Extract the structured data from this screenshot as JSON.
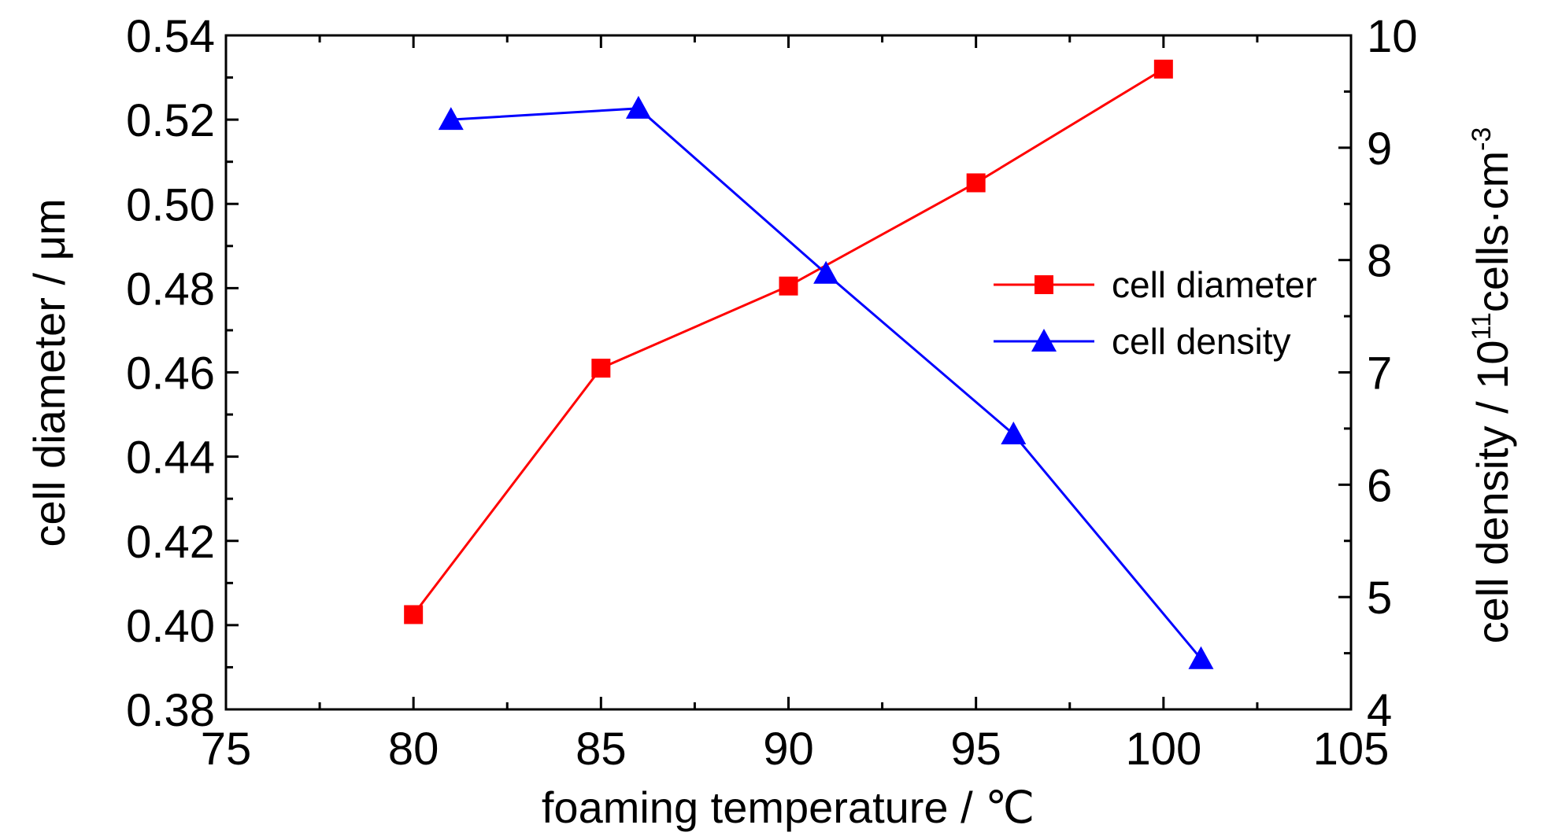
{
  "chart_data": {
    "type": "line",
    "xlabel": "foaming temperature / ℃",
    "ylabel_left": "cell diameter / μm",
    "ylabel_right": {
      "prefix": "cell density / 10",
      "sup1": "11",
      "mid": "cells·cm",
      "sup2": "-3"
    },
    "xlim": [
      75,
      105
    ],
    "xticks": [
      75,
      80,
      85,
      90,
      95,
      100,
      105
    ],
    "ylim_left": [
      0.38,
      0.54
    ],
    "yticks_left": [
      "0.38",
      "0.40",
      "0.42",
      "0.44",
      "0.46",
      "0.48",
      "0.50",
      "0.52",
      "0.54"
    ],
    "ylim_right": [
      4,
      10
    ],
    "yticks_right": [
      "4",
      "5",
      "6",
      "7",
      "8",
      "9",
      "10"
    ],
    "grid": false,
    "legend_position": "center-right",
    "series": [
      {
        "name": "cell diameter",
        "axis": "left",
        "marker": "square",
        "color": "#ff0000",
        "x": [
          80,
          85,
          90,
          95,
          100
        ],
        "y": [
          0.4025,
          0.461,
          0.4805,
          0.505,
          0.532
        ]
      },
      {
        "name": "cell density",
        "axis": "right",
        "marker": "triangle",
        "color": "#0000ff",
        "x": [
          81,
          86,
          91,
          96,
          101
        ],
        "y": [
          9.25,
          9.35,
          7.88,
          6.45,
          4.45
        ]
      }
    ]
  }
}
